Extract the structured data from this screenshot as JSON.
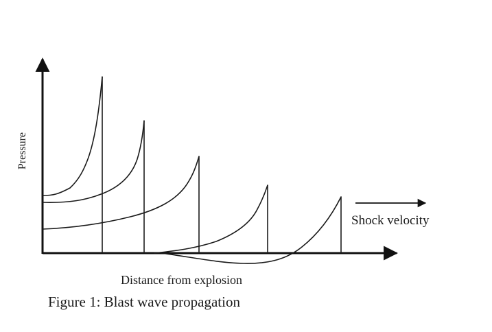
{
  "diagram": {
    "ylabel": "Pressure",
    "xlabel": "Distance from explosion",
    "arrow_label": "Shock velocity",
    "caption": "Figure 1:  Blast wave propagation"
  }
}
